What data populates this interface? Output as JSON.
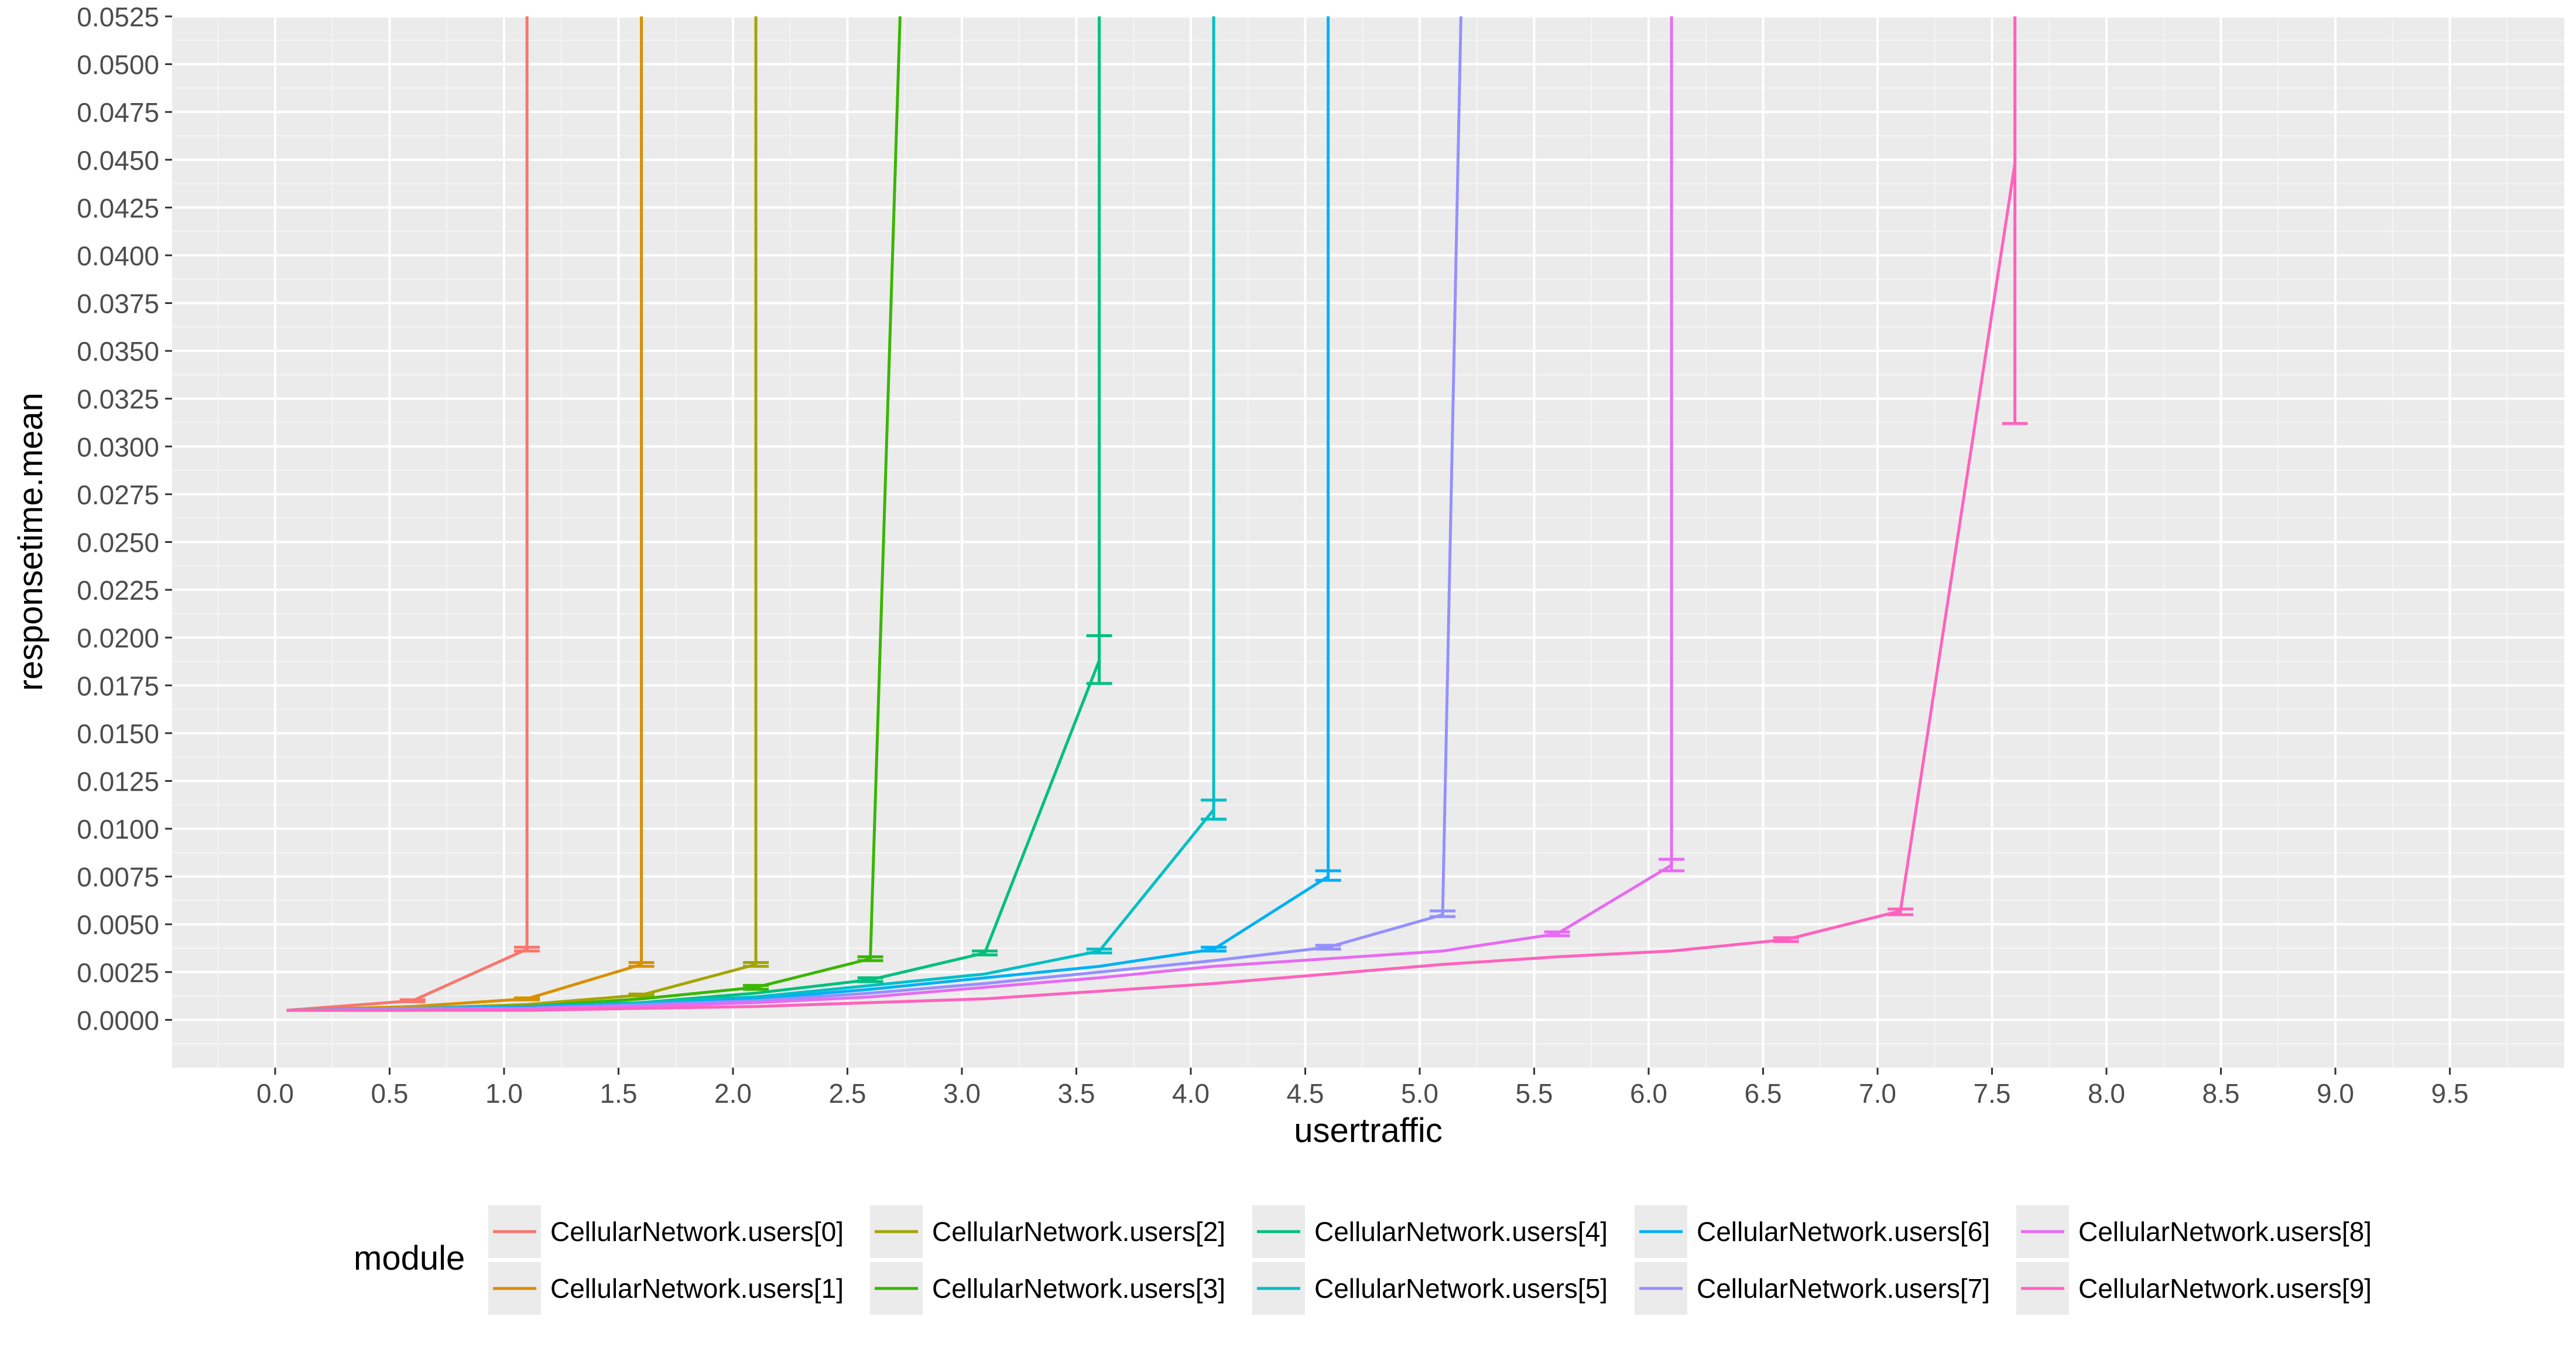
{
  "chart_data": {
    "type": "line",
    "xlabel": "usertraffic",
    "ylabel": "responsetime.mean",
    "xlim": [
      -0.45,
      10.0
    ],
    "ylim": [
      -0.0025,
      0.0525
    ],
    "x_ticks": [
      "0.0",
      "0.5",
      "1.0",
      "1.5",
      "2.0",
      "2.5",
      "3.0",
      "3.5",
      "4.0",
      "4.5",
      "5.0",
      "5.5",
      "6.0",
      "6.5",
      "7.0",
      "7.5",
      "8.0",
      "8.5",
      "9.0",
      "9.5"
    ],
    "y_ticks": [
      "0.0000",
      "0.0025",
      "0.0050",
      "0.0075",
      "0.0100",
      "0.0125",
      "0.0150",
      "0.0175",
      "0.0200",
      "0.0225",
      "0.0250",
      "0.0275",
      "0.0300",
      "0.0325",
      "0.0350",
      "0.0375",
      "0.0400",
      "0.0425",
      "0.0450",
      "0.0475",
      "0.0500",
      "0.0525"
    ],
    "grid": true,
    "legend": {
      "title": "module",
      "position": "bottom",
      "ncol": 5
    },
    "series": [
      {
        "name": "CellularNetwork.users[0]",
        "color": "#F8766D",
        "x": [
          0.05,
          0.6,
          1.1,
          1.1
        ],
        "y": [
          0.0005,
          0.001,
          0.0037,
          0.06
        ],
        "err": [
          [
            0.6,
            0.00095,
            0.00105
          ],
          [
            1.1,
            0.0036,
            0.0038
          ]
        ]
      },
      {
        "name": "CellularNetwork.users[1]",
        "color": "#D89000",
        "x": [
          0.05,
          0.6,
          1.1,
          1.6,
          1.6
        ],
        "y": [
          0.0005,
          0.0007,
          0.0011,
          0.0029,
          0.06
        ],
        "err": [
          [
            1.1,
            0.00105,
            0.00115
          ],
          [
            1.6,
            0.0028,
            0.003
          ]
        ]
      },
      {
        "name": "CellularNetwork.users[2]",
        "color": "#A3A500",
        "x": [
          0.05,
          0.6,
          1.1,
          1.6,
          2.1,
          2.1
        ],
        "y": [
          0.0005,
          0.0006,
          0.0008,
          0.0013,
          0.0029,
          0.06
        ],
        "err": [
          [
            1.6,
            0.00125,
            0.00135
          ],
          [
            2.1,
            0.0028,
            0.003
          ]
        ]
      },
      {
        "name": "CellularNetwork.users[3]",
        "color": "#39B600",
        "x": [
          0.05,
          0.6,
          1.1,
          1.6,
          2.1,
          2.6,
          2.73
        ],
        "y": [
          0.0005,
          0.0006,
          0.0007,
          0.0011,
          0.0017,
          0.0032,
          0.06
        ],
        "err": [
          [
            2.1,
            0.0016,
            0.0018
          ],
          [
            2.6,
            0.0031,
            0.0033
          ]
        ]
      },
      {
        "name": "CellularNetwork.users[4]",
        "color": "#00BF7D",
        "x": [
          0.05,
          0.6,
          1.1,
          1.6,
          2.1,
          2.6,
          3.1,
          3.6,
          3.6
        ],
        "y": [
          0.0005,
          0.0006,
          0.0007,
          0.0009,
          0.0014,
          0.0021,
          0.0035,
          0.0188,
          0.06
        ],
        "err": [
          [
            2.6,
            0.002,
            0.0022
          ],
          [
            3.1,
            0.0034,
            0.0036
          ],
          [
            3.6,
            0.0176,
            0.0201
          ]
        ]
      },
      {
        "name": "CellularNetwork.users[5]",
        "color": "#00BFC4",
        "x": [
          0.05,
          0.6,
          1.1,
          1.6,
          2.1,
          2.6,
          3.1,
          3.6,
          4.1,
          4.1
        ],
        "y": [
          0.0005,
          0.0006,
          0.0007,
          0.0009,
          0.0012,
          0.0018,
          0.0024,
          0.0036,
          0.011,
          0.06
        ],
        "err": [
          [
            3.6,
            0.0035,
            0.0037
          ],
          [
            4.1,
            0.0105,
            0.0115
          ]
        ]
      },
      {
        "name": "CellularNetwork.users[6]",
        "color": "#00B0F6",
        "x": [
          0.05,
          0.6,
          1.1,
          1.6,
          2.1,
          2.6,
          3.1,
          3.6,
          4.1,
          4.6,
          4.6
        ],
        "y": [
          0.0005,
          0.0006,
          0.0007,
          0.0008,
          0.0011,
          0.0016,
          0.0022,
          0.0028,
          0.0037,
          0.0075,
          0.06
        ],
        "err": [
          [
            4.1,
            0.0036,
            0.0038
          ],
          [
            4.6,
            0.0073,
            0.0078
          ]
        ]
      },
      {
        "name": "CellularNetwork.users[7]",
        "color": "#9590FF",
        "x": [
          0.05,
          0.6,
          1.1,
          1.6,
          2.1,
          2.6,
          3.1,
          3.6,
          4.1,
          4.6,
          5.1,
          5.18
        ],
        "y": [
          0.0005,
          0.0006,
          0.0006,
          0.0008,
          0.001,
          0.0014,
          0.0019,
          0.0025,
          0.0031,
          0.0038,
          0.0055,
          0.06
        ],
        "err": [
          [
            4.6,
            0.0037,
            0.0039
          ],
          [
            5.1,
            0.0054,
            0.0057
          ]
        ]
      },
      {
        "name": "CellularNetwork.users[8]",
        "color": "#E76BF3",
        "x": [
          0.05,
          0.6,
          1.1,
          1.6,
          2.1,
          2.6,
          3.1,
          3.6,
          4.1,
          4.6,
          5.1,
          5.6,
          6.1,
          6.1
        ],
        "y": [
          0.0005,
          0.0005,
          0.0006,
          0.0007,
          0.0009,
          0.0012,
          0.0017,
          0.0022,
          0.0028,
          0.0032,
          0.0036,
          0.0045,
          0.0081,
          0.06
        ],
        "err": [
          [
            5.6,
            0.0044,
            0.0046
          ],
          [
            6.1,
            0.0078,
            0.0084
          ]
        ]
      },
      {
        "name": "CellularNetwork.users[9]",
        "color": "#FF62BC",
        "x": [
          0.05,
          0.6,
          1.1,
          1.6,
          2.1,
          2.6,
          3.1,
          3.6,
          4.1,
          4.6,
          5.1,
          5.6,
          6.1,
          6.6,
          7.1,
          7.6,
          7.6
        ],
        "y": [
          0.0005,
          0.0005,
          0.0005,
          0.0006,
          0.0007,
          0.0009,
          0.0011,
          0.0015,
          0.0019,
          0.0024,
          0.0029,
          0.0033,
          0.0036,
          0.0042,
          0.0057,
          0.0448,
          0.06
        ],
        "err": [
          [
            6.6,
            0.0041,
            0.0043
          ],
          [
            7.1,
            0.0055,
            0.0058
          ],
          [
            7.6,
            0.0312,
            0.06
          ]
        ]
      }
    ]
  }
}
